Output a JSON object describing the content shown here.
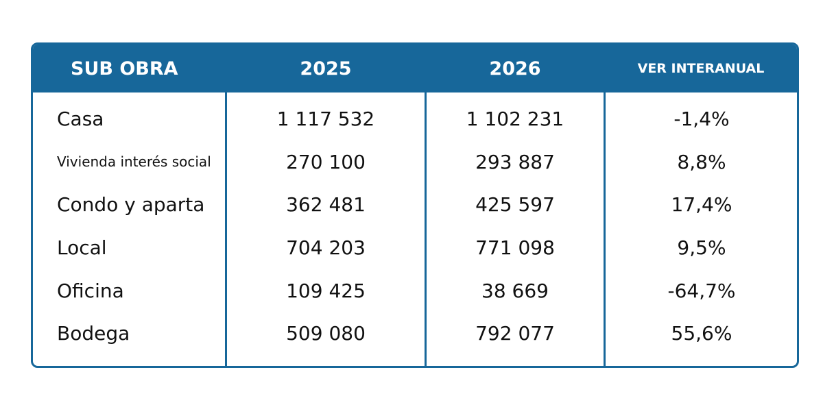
{
  "table": {
    "headers": [
      "SUB OBRA",
      "2025",
      "2026",
      "VER INTERANUAL"
    ],
    "rows": [
      {
        "label": "Casa",
        "v2025": "1 117 532",
        "v2026": "1 102 231",
        "change": "-1,4%"
      },
      {
        "label": "Vivienda interés social",
        "v2025": "270 100",
        "v2026": "293 887",
        "change": "8,8%"
      },
      {
        "label": "Condo y aparta",
        "v2025": "362 481",
        "v2026": "425 597",
        "change": "17,4%"
      },
      {
        "label": "Local",
        "v2025": "704 203",
        "v2026": "771 098",
        "change": "9,5%"
      },
      {
        "label": "Oficina",
        "v2025": "109 425",
        "v2026": "38 669",
        "change": "-64,7%"
      },
      {
        "label": "Bodega",
        "v2025": "509 080",
        "v2026": "792 077",
        "change": "55,6%"
      }
    ]
  },
  "chart_data": {
    "type": "table",
    "columns": [
      "SUB OBRA",
      "2025",
      "2026",
      "VER INTERANUAL"
    ],
    "categories": [
      "Casa",
      "Vivienda interés social",
      "Condo y aparta",
      "Local",
      "Oficina",
      "Bodega"
    ],
    "series": [
      {
        "name": "2025",
        "values": [
          1117532,
          270100,
          362481,
          704203,
          109425,
          509080
        ]
      },
      {
        "name": "2026",
        "values": [
          1102231,
          293887,
          425597,
          771098,
          38669,
          792077
        ]
      },
      {
        "name": "VER INTERANUAL",
        "values": [
          -1.4,
          8.8,
          17.4,
          9.5,
          -64.7,
          55.6
        ]
      }
    ]
  },
  "colors": {
    "header_bg": "#17679a",
    "border": "#17679a",
    "header_text": "#ffffff",
    "body_text": "#111111"
  }
}
